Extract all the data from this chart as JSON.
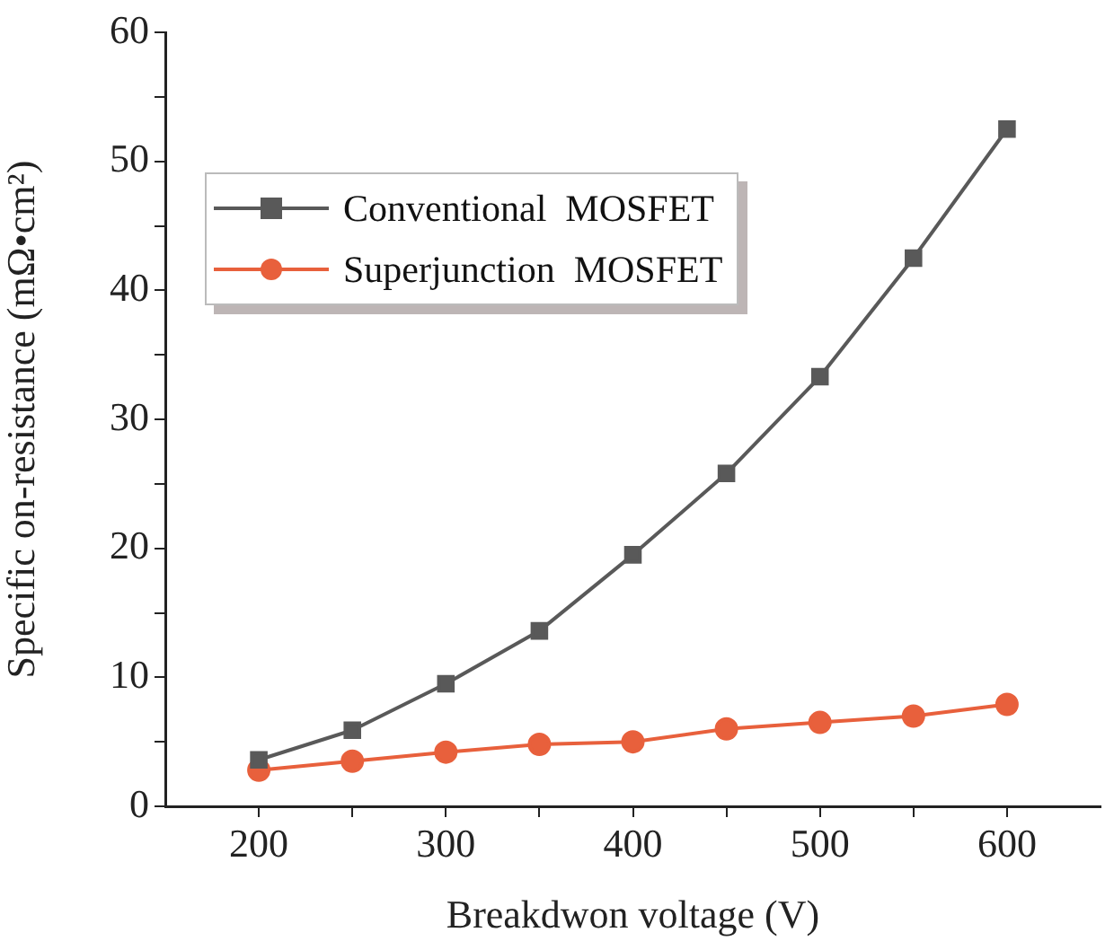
{
  "chart_data": {
    "type": "line",
    "xlabel": "Breakdwon voltage (V)",
    "ylabel": "Specific on-resistance (mΩ•cm²)",
    "x": [
      200,
      250,
      300,
      350,
      400,
      450,
      500,
      550,
      600
    ],
    "series": [
      {
        "name": "Conventional  MOSFET",
        "color": "#595959",
        "marker": "square",
        "values": [
          3.6,
          5.9,
          9.5,
          13.6,
          19.5,
          25.8,
          33.3,
          42.5,
          52.5
        ]
      },
      {
        "name": "Superjunction  MOSFET",
        "color": "#e8603c",
        "marker": "circle",
        "values": [
          2.8,
          3.5,
          4.2,
          4.8,
          5.0,
          6.0,
          6.5,
          7.0,
          7.9
        ]
      }
    ],
    "xlim": [
      150,
      650
    ],
    "xticks": [
      200,
      {
        "value": 250,
        "label": null
      },
      300,
      {
        "value": 350,
        "label": null
      },
      400,
      {
        "value": 450,
        "label": null
      },
      500,
      {
        "value": 550,
        "label": null
      },
      600
    ],
    "ylim": [
      0,
      60
    ],
    "yticks": [
      0,
      {
        "value": 5,
        "label": null
      },
      10,
      {
        "value": 15,
        "label": null
      },
      20,
      {
        "value": 25,
        "label": null
      },
      30,
      {
        "value": 35,
        "label": null
      },
      40,
      {
        "value": 45,
        "label": null
      },
      50,
      {
        "value": 55,
        "label": null
      },
      60
    ],
    "grid": false,
    "legend": "top left",
    "line_style": "solid"
  }
}
